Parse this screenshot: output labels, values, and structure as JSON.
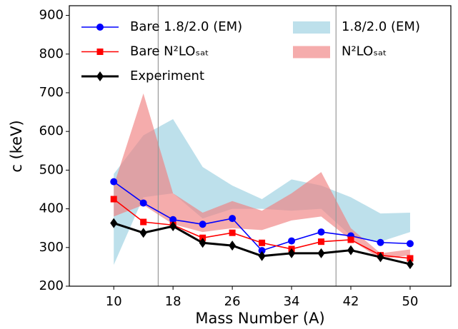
{
  "chart_data": {
    "type": "line",
    "xlabel": "Mass Number (A)",
    "ylabel": "c (keV)",
    "x": [
      10,
      14,
      18,
      22,
      26,
      30,
      34,
      38,
      42,
      46,
      50
    ],
    "series": [
      {
        "name": "Bare 1.8/2.0 (EM)",
        "color": "#0000ff",
        "marker": "circle",
        "values": [
          470,
          415,
          372,
          360,
          375,
          292,
          317,
          340,
          330,
          313,
          310
        ]
      },
      {
        "name": "Bare N²LOₛₐₜ",
        "color": "#ff0000",
        "marker": "square",
        "values": [
          425,
          366,
          358,
          325,
          338,
          312,
          296,
          315,
          320,
          280,
          272
        ]
      },
      {
        "name": "Experiment",
        "color": "#000000",
        "marker": "diamond",
        "values": [
          363,
          338,
          355,
          312,
          305,
          278,
          285,
          285,
          293,
          275,
          257
        ]
      }
    ],
    "bands": [
      {
        "name": "1.8/2.0 (EM)",
        "color": "#add8e6",
        "lower": [
          255,
          430,
          440,
          375,
          400,
          400,
          395,
          400,
          330,
          315,
          340
        ],
        "upper": [
          490,
          590,
          632,
          508,
          460,
          425,
          476,
          460,
          430,
          388,
          390
        ]
      },
      {
        "name": "N²LOₛₐₜ",
        "color": "#f08080",
        "lower": [
          380,
          410,
          360,
          340,
          350,
          345,
          370,
          380,
          320,
          270,
          280
        ],
        "upper": [
          460,
          698,
          440,
          390,
          420,
          395,
          440,
          495,
          350,
          285,
          295
        ]
      }
    ],
    "vlines": [
      16,
      40
    ],
    "xlim": [
      4,
      55.5
    ],
    "ylim": [
      200,
      925
    ],
    "xticks": [
      10,
      18,
      26,
      34,
      42,
      50
    ],
    "yticks": [
      200,
      300,
      400,
      500,
      600,
      700,
      800,
      900
    ],
    "legend": "upper left"
  }
}
